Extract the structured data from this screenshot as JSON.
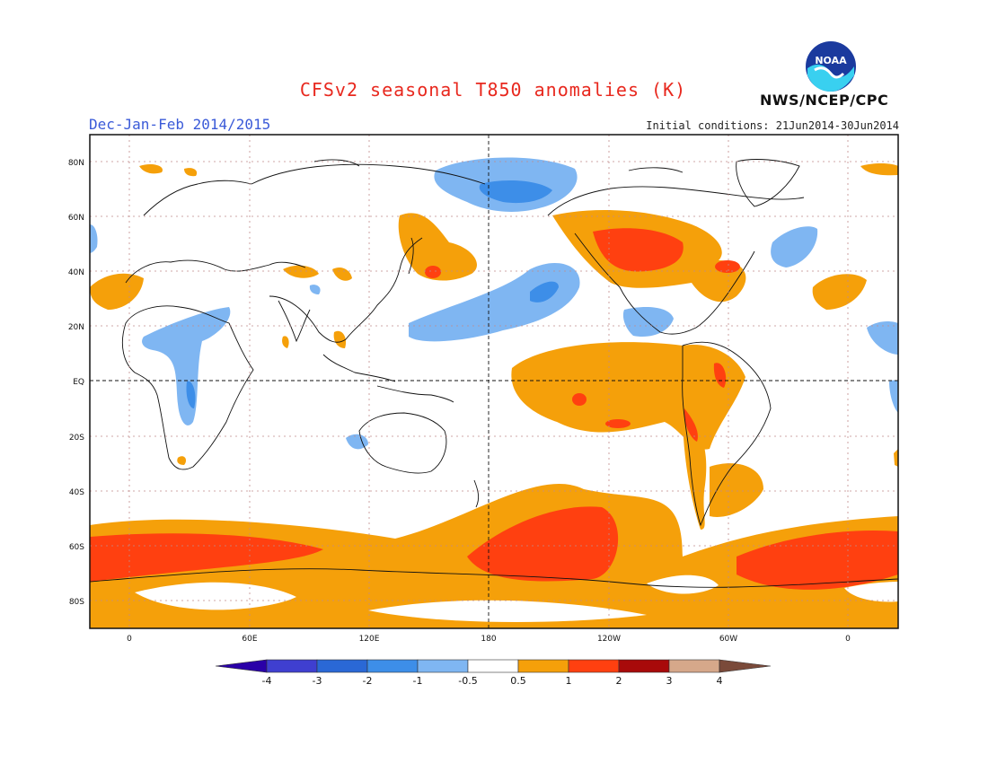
{
  "header": {
    "title": "CFSv2 seasonal T850 anomalies (K)",
    "season": "Dec-Jan-Feb 2014/2015",
    "initial_conditions": "Initial conditions: 21Jun2014-30Jun2014",
    "agency": "NWS/NCEP/CPC",
    "logo_text": "NOAA"
  },
  "map": {
    "lat_labels": [
      "80N",
      "60N",
      "40N",
      "20N",
      "EQ",
      "20S",
      "40S",
      "60S",
      "80S"
    ],
    "lon_labels": [
      "0",
      "60E",
      "120E",
      "180",
      "120W",
      "60W",
      "0"
    ]
  },
  "colorbar": {
    "labels": [
      "-4",
      "-3",
      "-2",
      "-1",
      "-0.5",
      "0.5",
      "1",
      "2",
      "3",
      "4"
    ],
    "colors": [
      "#2a00a8",
      "#3f3fd0",
      "#2a68d6",
      "#3d8ee8",
      "#7fb6f2",
      "#ffffff",
      "#f5a00a",
      "#ff4010",
      "#a80a0a",
      "#d6a88a",
      "#7a4a3a"
    ]
  }
}
